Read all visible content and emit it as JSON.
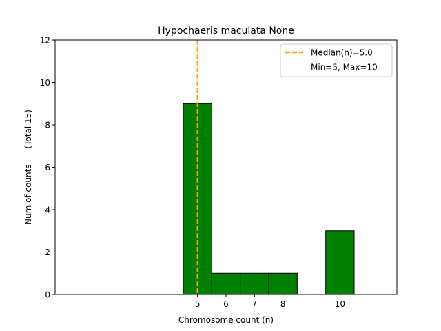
{
  "chart_data": {
    "type": "bar",
    "title": "Hypochaeris maculata None",
    "xlabel": "Chromosome count (n)",
    "ylabel": "Num of counts      (Total 15)",
    "xlim": [
      0,
      12
    ],
    "ylim": [
      0,
      12
    ],
    "x_ticks": [
      5,
      6,
      7,
      8,
      10
    ],
    "y_ticks": [
      0,
      2,
      4,
      6,
      8,
      10,
      12
    ],
    "bin_width": 1,
    "bars": [
      {
        "x": 5,
        "value": 9
      },
      {
        "x": 6,
        "value": 1
      },
      {
        "x": 7,
        "value": 1
      },
      {
        "x": 8,
        "value": 1
      },
      {
        "x": 10,
        "value": 3
      }
    ],
    "median_line": {
      "x": 5.0,
      "label": "Median(n)=5.0",
      "color": "#FFA500",
      "style": "dashed"
    },
    "legend": {
      "placement": "top-right",
      "entries": [
        "Median(n)=5.0",
        "Min=5, Max=10"
      ]
    },
    "colors": {
      "bar_fill": "#008000",
      "bar_edge": "#000000",
      "median": "#FFA500"
    },
    "grid": false
  }
}
